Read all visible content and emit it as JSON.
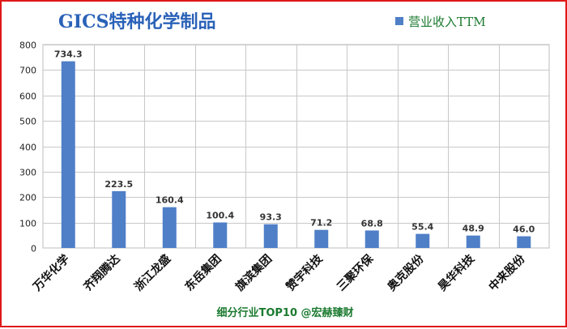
{
  "chart_data": {
    "type": "bar",
    "title": "GICS特种化学制品",
    "categories": [
      "万华化学",
      "齐翔腾达",
      "浙江龙盛",
      "东岳集团",
      "旗滨集团",
      "赞宇科技",
      "三聚环保",
      "奥克股份",
      "昊华科技",
      "中来股份"
    ],
    "series": [
      {
        "name": "营业收入TTM",
        "values": [
          734.3,
          223.5,
          160.4,
          100.4,
          93.3,
          71.2,
          68.8,
          55.4,
          48.9,
          46.0
        ],
        "labels": [
          "734.3",
          "223.5",
          "160.4",
          "100.4",
          "93.3",
          "71.2",
          "68.8",
          "55.4",
          "48.9",
          "46.0"
        ]
      }
    ],
    "ylim": [
      0,
      800
    ],
    "yticks": [
      "0",
      "100",
      "200",
      "300",
      "400",
      "500",
      "600",
      "700",
      "800"
    ],
    "grid": true,
    "legend_position": "top-right",
    "bar_color": "#4f7fc7",
    "footer": "细分行业TOP10 @宏赫臻财"
  }
}
